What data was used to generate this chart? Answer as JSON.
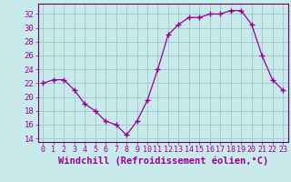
{
  "hours": [
    0,
    1,
    2,
    3,
    4,
    5,
    6,
    7,
    8,
    9,
    10,
    11,
    12,
    13,
    14,
    15,
    16,
    17,
    18,
    19,
    20,
    21,
    22,
    23
  ],
  "values": [
    22,
    22.5,
    22.5,
    21,
    19,
    18,
    16.5,
    16,
    14.5,
    16.5,
    19.5,
    24,
    29,
    30.5,
    31.5,
    31.5,
    32,
    32,
    32.5,
    32.5,
    30.5,
    26,
    22.5,
    21
  ],
  "line_color": "#990099",
  "marker": "+",
  "marker_size": 4,
  "marker_lw": 1.0,
  "bg_color": "#c8eaea",
  "grid_color": "#a0cccc",
  "xlabel": "Windchill (Refroidissement éolien,°C)",
  "xlabel_fontsize": 7.5,
  "ylabel_ticks": [
    14,
    16,
    18,
    20,
    22,
    24,
    26,
    28,
    30,
    32
  ],
  "ytick_fontsize": 6.5,
  "xtick_fontsize": 6.0,
  "ylim": [
    13.5,
    33.5
  ],
  "xlim": [
    -0.5,
    23.5
  ],
  "line_width": 0.9,
  "spine_color": "#660066"
}
